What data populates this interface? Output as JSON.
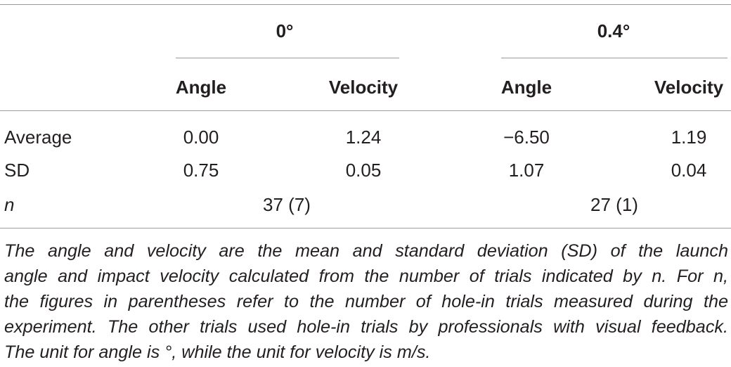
{
  "table": {
    "groups": [
      "0°",
      "0.4°"
    ],
    "subheaders": [
      "Angle",
      "Velocity",
      "Angle",
      "Velocity"
    ],
    "rows": [
      {
        "label": "Average",
        "values": [
          "0.00",
          "1.24",
          "−6.50",
          "1.19"
        ]
      },
      {
        "label": "SD",
        "values": [
          "0.75",
          "0.05",
          "1.07",
          "0.04"
        ]
      }
    ],
    "n_row": {
      "label": "n",
      "values": [
        "37 (7)",
        "27 (1)"
      ]
    }
  },
  "footnote": {
    "lines": [
      "The angle and velocity are the mean and standard deviation (SD) of the launch",
      "angle and impact velocity calculated from the number of trials indicated by n. For n,",
      "the figures in parentheses refer to the number of hole-in trials measured during the",
      "experiment. The other trials used hole-in trials by professionals with visual feedback.",
      "The unit for angle is °, while the unit for velocity is m/s."
    ]
  }
}
